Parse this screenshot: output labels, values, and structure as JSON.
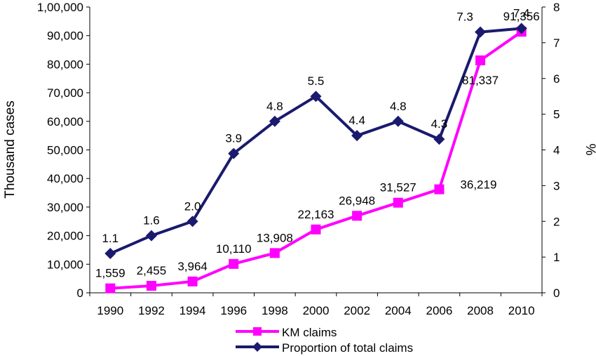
{
  "chart_data": {
    "type": "line",
    "x": [
      "1990",
      "1992",
      "1994",
      "1996",
      "1998",
      "2000",
      "2002",
      "2004",
      "2006",
      "2008",
      "2010"
    ],
    "ylabel_left": "Thousand cases",
    "ylabel_right": "%",
    "ylim_left": [
      0,
      100000
    ],
    "ylim_right": [
      0,
      8
    ],
    "yticks_left": [
      "0",
      "10,000",
      "20,000",
      "30,000",
      "40,000",
      "50,000",
      "60,000",
      "70,000",
      "80,000",
      "90,000",
      "1,00,000"
    ],
    "yticks_right": [
      "0",
      "1",
      "2",
      "3",
      "4",
      "5",
      "6",
      "7",
      "8"
    ],
    "grid": false,
    "legend_position": "bottom-center",
    "series": [
      {
        "name": "KM claims",
        "axis": "left",
        "color": "#ff00ff",
        "marker": "square",
        "values": [
          1559,
          2455,
          3964,
          10110,
          13908,
          22163,
          26948,
          31527,
          36219,
          81337,
          91356
        ],
        "labels": [
          "1,559",
          "2,455",
          "3,964",
          "10,110",
          "13,908",
          "22,163",
          "26,948",
          "31,527",
          "36,219",
          "81,337",
          "91,356"
        ]
      },
      {
        "name": "Proportion of total claims",
        "axis": "right",
        "color": "#1a1a6e",
        "marker": "diamond",
        "values": [
          1.1,
          1.6,
          2.0,
          3.9,
          4.8,
          5.5,
          4.4,
          4.8,
          4.3,
          7.3,
          7.4
        ],
        "labels": [
          "1.1",
          "1.6",
          "2.0",
          "3.9",
          "4.8",
          "5.5",
          "4.4",
          "4.8",
          "4.3",
          "7.3",
          "7.4"
        ]
      }
    ]
  }
}
